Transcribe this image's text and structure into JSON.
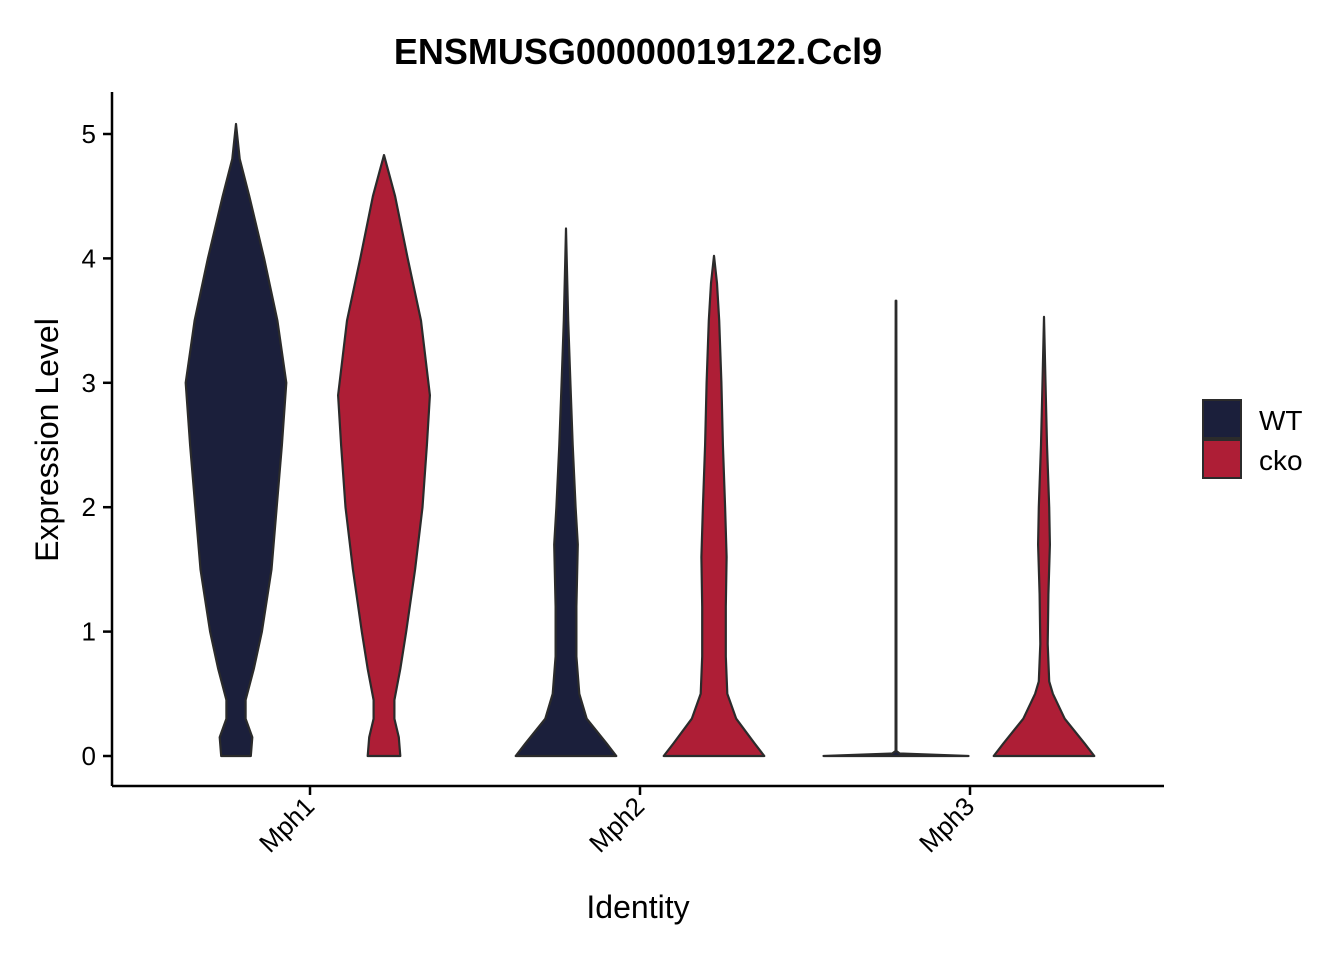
{
  "chart_data": {
    "type": "violin",
    "title": "ENSMUSG00000019122.Ccl9",
    "xlabel": "Identity",
    "ylabel": "Expression Level",
    "categories": [
      "Mph1",
      "Mph2",
      "Mph3"
    ],
    "ylim": [
      -0.25,
      5.3
    ],
    "yticks": [
      0,
      1,
      2,
      3,
      4,
      5
    ],
    "grid": false,
    "legend_position": "right",
    "series": [
      {
        "name": "WT",
        "color": "#1b1f3b",
        "groups": [
          {
            "category": "Mph1",
            "max": 5.08,
            "profile": [
              [
                0,
                0.2
              ],
              [
                0.15,
                0.22
              ],
              [
                0.3,
                0.13
              ],
              [
                0.45,
                0.13
              ],
              [
                0.7,
                0.24
              ],
              [
                1.0,
                0.35
              ],
              [
                1.5,
                0.48
              ],
              [
                2.0,
                0.55
              ],
              [
                2.5,
                0.62
              ],
              [
                3.0,
                0.68
              ],
              [
                3.5,
                0.56
              ],
              [
                4.0,
                0.38
              ],
              [
                4.5,
                0.18
              ],
              [
                4.8,
                0.05
              ],
              [
                5.08,
                0.0
              ]
            ]
          },
          {
            "category": "Mph2",
            "max": 4.24,
            "profile": [
              [
                0,
                0.68
              ],
              [
                0.1,
                0.55
              ],
              [
                0.3,
                0.28
              ],
              [
                0.5,
                0.18
              ],
              [
                0.8,
                0.14
              ],
              [
                1.2,
                0.14
              ],
              [
                1.7,
                0.16
              ],
              [
                2.0,
                0.13
              ],
              [
                2.5,
                0.09
              ],
              [
                3.0,
                0.06
              ],
              [
                3.5,
                0.03
              ],
              [
                4.0,
                0.01
              ],
              [
                4.24,
                0.0
              ]
            ]
          },
          {
            "category": "Mph3",
            "max": 3.66,
            "profile": [
              [
                0,
                0.98
              ],
              [
                0.02,
                0.05
              ],
              [
                0.04,
                0.006
              ],
              [
                1.0,
                0.006
              ],
              [
                2.0,
                0.006
              ],
              [
                3.0,
                0.006
              ],
              [
                3.66,
                0.004
              ]
            ]
          }
        ]
      },
      {
        "name": "cko",
        "color": "#ae1e36",
        "groups": [
          {
            "category": "Mph1",
            "max": 4.83,
            "profile": [
              [
                0,
                0.22
              ],
              [
                0.15,
                0.2
              ],
              [
                0.3,
                0.14
              ],
              [
                0.45,
                0.14
              ],
              [
                0.7,
                0.22
              ],
              [
                1.0,
                0.3
              ],
              [
                1.5,
                0.42
              ],
              [
                2.0,
                0.52
              ],
              [
                2.5,
                0.58
              ],
              [
                2.9,
                0.62
              ],
              [
                3.5,
                0.5
              ],
              [
                4.0,
                0.32
              ],
              [
                4.5,
                0.15
              ],
              [
                4.7,
                0.06
              ],
              [
                4.83,
                0.0
              ]
            ]
          },
          {
            "category": "Mph2",
            "max": 4.02,
            "profile": [
              [
                0,
                0.68
              ],
              [
                0.1,
                0.55
              ],
              [
                0.3,
                0.3
              ],
              [
                0.5,
                0.18
              ],
              [
                0.8,
                0.16
              ],
              [
                1.2,
                0.16
              ],
              [
                1.6,
                0.17
              ],
              [
                2.0,
                0.15
              ],
              [
                2.5,
                0.12
              ],
              [
                3.0,
                0.1
              ],
              [
                3.5,
                0.07
              ],
              [
                3.8,
                0.04
              ],
              [
                4.02,
                0.0
              ]
            ]
          },
          {
            "category": "Mph3",
            "max": 3.53,
            "profile": [
              [
                0,
                0.68
              ],
              [
                0.1,
                0.55
              ],
              [
                0.3,
                0.28
              ],
              [
                0.5,
                0.12
              ],
              [
                0.6,
                0.07
              ],
              [
                0.9,
                0.05
              ],
              [
                1.3,
                0.06
              ],
              [
                1.7,
                0.08
              ],
              [
                2.0,
                0.07
              ],
              [
                2.5,
                0.04
              ],
              [
                3.0,
                0.02
              ],
              [
                3.53,
                0.0
              ]
            ]
          }
        ]
      }
    ]
  }
}
